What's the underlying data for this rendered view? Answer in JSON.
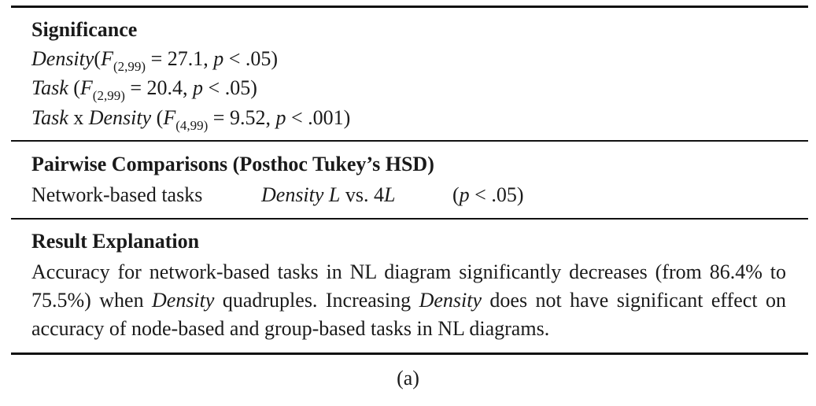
{
  "significance": {
    "heading": "Significance",
    "lines": [
      {
        "factor": "Density",
        "df": "(2,99)",
        "F": "27.1",
        "p": ".05",
        "space_before_paren": false,
        "second_factor": ""
      },
      {
        "factor": "Task",
        "df": "(2,99)",
        "F": "20.4",
        "p": ".05",
        "space_before_paren": true,
        "second_factor": ""
      },
      {
        "factor": "Task",
        "df": "(4,99)",
        "F": "9.52",
        "p": ".001",
        "space_before_paren": true,
        "second_factor": "Density"
      }
    ],
    "interaction_x": "x"
  },
  "pairwise": {
    "heading": "Pairwise Comparisons (Posthoc Tukey’s HSD)",
    "row": {
      "task": "Network-based tasks",
      "factor": "Density",
      "level_a": "L",
      "vs": "vs. 4",
      "level_b": "L",
      "p_value": ".05"
    }
  },
  "explanation": {
    "heading": "Result Explanation",
    "text_1": "Accuracy for network-based tasks in NL diagram significantly decreases (from 86.4% to 75.5%) when ",
    "term_1": "Density",
    "text_2": " quadruples. Increasing ",
    "term_2": "Density",
    "text_3": " does not have significant effect on accuracy of node-based and group-based tasks in NL diagrams."
  },
  "caption": "(a)"
}
